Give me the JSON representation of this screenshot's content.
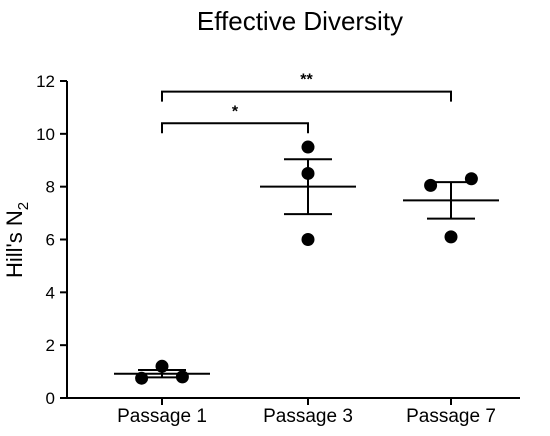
{
  "chart_data": {
    "type": "scatter",
    "title": "Effective Diversity",
    "ylabel_main": "Hill's N",
    "ylabel_sub": "2",
    "ylim": [
      0,
      12
    ],
    "yticks": [
      0,
      2,
      4,
      6,
      8,
      10,
      12
    ],
    "categories": [
      "Passage 1",
      "Passage 3",
      "Passage 7"
    ],
    "points": [
      [
        {
          "dx": -0.17,
          "y": 0.75
        },
        {
          "dx": 0.0,
          "y": 1.2
        },
        {
          "dx": 0.17,
          "y": 0.8
        }
      ],
      [
        {
          "dx": 0.0,
          "y": 9.5
        },
        {
          "dx": 0.0,
          "y": 8.5
        },
        {
          "dx": 0.0,
          "y": 6.0
        }
      ],
      [
        {
          "dx": -0.17,
          "y": 8.05
        },
        {
          "dx": 0.17,
          "y": 8.3
        },
        {
          "dx": 0.0,
          "y": 6.1
        }
      ]
    ],
    "means": [
      0.92,
      8.0,
      7.48
    ],
    "sem": [
      0.14,
      1.04,
      0.69
    ],
    "significance": [
      {
        "from": 0,
        "to": 1,
        "label": "*",
        "y": 10.4
      },
      {
        "from": 0,
        "to": 2,
        "label": "**",
        "y": 11.6
      }
    ],
    "marker_color": "#000000"
  }
}
